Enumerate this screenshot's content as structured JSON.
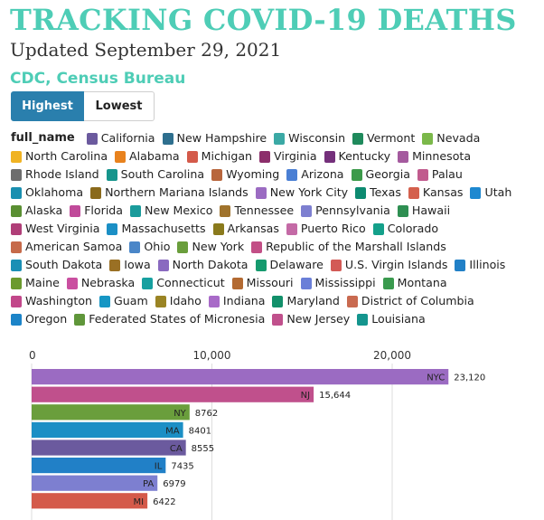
{
  "title": "TRACKING COVID-19 DEATHS",
  "subtitle": "Updated September 29, 2021",
  "source": "CDC, Census Bureau",
  "colors": {
    "title": "#4ecdb6",
    "source": "#4ecdb6",
    "button_active_bg": "#2a7fad",
    "button_active_text": "#ffffff",
    "button_inactive_bg": "#ffffff",
    "button_inactive_text": "#222222",
    "grid": "#dddddd",
    "axis_text": "#333333"
  },
  "toggle": {
    "highest_label": "Highest",
    "lowest_label": "Lowest",
    "active": "Highest"
  },
  "legend": {
    "title": "full_name",
    "items": [
      {
        "label": "California",
        "color": "#6b5a9e"
      },
      {
        "label": "New Hampshire",
        "color": "#2e6f8e"
      },
      {
        "label": "Wisconsin",
        "color": "#3ba9a5"
      },
      {
        "label": "Vermont",
        "color": "#1f8a5c"
      },
      {
        "label": "Nevada",
        "color": "#7bb84a"
      },
      {
        "label": "North Carolina",
        "color": "#f0b323"
      },
      {
        "label": "Alabama",
        "color": "#e8821e"
      },
      {
        "label": "Michigan",
        "color": "#d45a4a"
      },
      {
        "label": "Virginia",
        "color": "#8c2f6b"
      },
      {
        "label": "Kentucky",
        "color": "#74307b"
      },
      {
        "label": "Minnesota",
        "color": "#a45a9e"
      },
      {
        "label": "Rhode Island",
        "color": "#6d6d6d"
      },
      {
        "label": "South Carolina",
        "color": "#16958c"
      },
      {
        "label": "Wyoming",
        "color": "#b8663c"
      },
      {
        "label": "Arizona",
        "color": "#4a7fd4"
      },
      {
        "label": "Georgia",
        "color": "#3c9a4a"
      },
      {
        "label": "Palau",
        "color": "#c15b8e"
      },
      {
        "label": "Oklahoma",
        "color": "#1a8fb0"
      },
      {
        "label": "Northern Mariana Islands",
        "color": "#8a6a1c"
      },
      {
        "label": "New York City",
        "color": "#9b6bc2"
      },
      {
        "label": "Texas",
        "color": "#0d8a70"
      },
      {
        "label": "Kansas",
        "color": "#d4604d"
      },
      {
        "label": "Utah",
        "color": "#1e88d0"
      },
      {
        "label": "Alaska",
        "color": "#5a8f32"
      },
      {
        "label": "Florida",
        "color": "#c04a9a"
      },
      {
        "label": "New Mexico",
        "color": "#1a9b9b"
      },
      {
        "label": "Tennessee",
        "color": "#a0732c"
      },
      {
        "label": "Pennsylvania",
        "color": "#7d7fd0"
      },
      {
        "label": "Hawaii",
        "color": "#2e8f52"
      },
      {
        "label": "West Virginia",
        "color": "#b03e78"
      },
      {
        "label": "Massachusetts",
        "color": "#1b8fc5"
      },
      {
        "label": "Arkansas",
        "color": "#8a7a1c"
      },
      {
        "label": "Puerto Rico",
        "color": "#c46aa6"
      },
      {
        "label": "Colorado",
        "color": "#14a08a"
      },
      {
        "label": "American Samoa",
        "color": "#c66a4a"
      },
      {
        "label": "Ohio",
        "color": "#4a86c8"
      },
      {
        "label": "New York",
        "color": "#6a9e3c"
      },
      {
        "label": "Republic of the Marshall Islands",
        "color": "#c24f86"
      },
      {
        "label": "South Dakota",
        "color": "#1b8fb5"
      },
      {
        "label": "Iowa",
        "color": "#9a7024"
      },
      {
        "label": "North Dakota",
        "color": "#8a6ac0"
      },
      {
        "label": "Delaware",
        "color": "#169a6e"
      },
      {
        "label": "U.S. Virgin Islands",
        "color": "#d35a56"
      },
      {
        "label": "Illinois",
        "color": "#2180c7"
      },
      {
        "label": "Maine",
        "color": "#6b9a2e"
      },
      {
        "label": "Nebraska",
        "color": "#ca4fa0"
      },
      {
        "label": "Connecticut",
        "color": "#17a0a0"
      },
      {
        "label": "Missouri",
        "color": "#b36a32"
      },
      {
        "label": "Mississippi",
        "color": "#6a7fd8"
      },
      {
        "label": "Montana",
        "color": "#3a9a4e"
      },
      {
        "label": "Washington",
        "color": "#c2478a"
      },
      {
        "label": "Guam",
        "color": "#1696c4"
      },
      {
        "label": "Idaho",
        "color": "#9a8424"
      },
      {
        "label": "Indiana",
        "color": "#a86ac8"
      },
      {
        "label": "Maryland",
        "color": "#12906a"
      },
      {
        "label": "District of Columbia",
        "color": "#c96a50"
      },
      {
        "label": "Oregon",
        "color": "#1c84c8"
      },
      {
        "label": "Federated States of Micronesia",
        "color": "#5f963a"
      },
      {
        "label": "New Jersey",
        "color": "#c0508c"
      },
      {
        "label": "Louisiana",
        "color": "#14958e"
      }
    ]
  },
  "chart_data": {
    "type": "bar",
    "orientation": "horizontal",
    "x_ticks": [
      0,
      10000,
      20000
    ],
    "x_tick_labels": [
      "0",
      "10,000",
      "20,000"
    ],
    "xlim": [
      0,
      24500
    ],
    "grid": true,
    "bars": [
      {
        "label": "NYC",
        "value": 23120,
        "value_label": "23,120",
        "color": "#9b6bc2"
      },
      {
        "label": "NJ",
        "value": 15644,
        "value_label": "15,644",
        "color": "#c0508c"
      },
      {
        "label": "NY",
        "value": 8762,
        "value_label": "8762",
        "color": "#6a9e3c"
      },
      {
        "label": "MA",
        "value": 8401,
        "value_label": "8401",
        "color": "#1b8fc5"
      },
      {
        "label": "CA",
        "value": 8555,
        "value_label": "8555",
        "color": "#6b5a9e"
      },
      {
        "label": "IL",
        "value": 7435,
        "value_label": "7435",
        "color": "#2180c7"
      },
      {
        "label": "PA",
        "value": 6979,
        "value_label": "6979",
        "color": "#7d7fd0"
      },
      {
        "label": "MI",
        "value": 6422,
        "value_label": "6422",
        "color": "#d45a4a"
      }
    ]
  }
}
